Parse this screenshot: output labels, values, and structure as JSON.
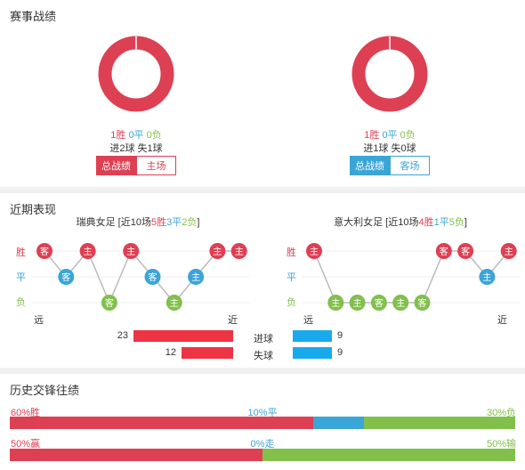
{
  "section1": {
    "title": "赛事战绩",
    "left": {
      "win_label": "1胜",
      "draw_label": "0平",
      "loss_label": "0负",
      "goals": "进2球 失1球",
      "tab_active": "总战绩",
      "tab_other": "主场",
      "win_fraction": 1.0
    },
    "right": {
      "win_label": "1胜",
      "draw_label": "0平",
      "loss_label": "0负",
      "goals": "进1球 失0球",
      "tab_active": "总战绩",
      "tab_other": "客场",
      "win_fraction": 1.0
    }
  },
  "section2": {
    "title": "近期表现",
    "left": {
      "team": "瑞典女足",
      "summary_prefix": "[近10场",
      "wins": "5胜",
      "draws": "3平",
      "losses": "2负",
      "summary_suffix": "]",
      "y_win": "胜",
      "y_draw": "平",
      "y_loss": "负",
      "x_far": "远",
      "x_near": "近",
      "results": [
        {
          "result": "W",
          "venue": "客"
        },
        {
          "result": "D",
          "venue": "客"
        },
        {
          "result": "W",
          "venue": "主"
        },
        {
          "result": "L",
          "venue": "客"
        },
        {
          "result": "W",
          "venue": "主"
        },
        {
          "result": "D",
          "venue": "客"
        },
        {
          "result": "L",
          "venue": "主"
        },
        {
          "result": "D",
          "venue": "主"
        },
        {
          "result": "W",
          "venue": "主"
        },
        {
          "result": "W",
          "venue": "主"
        }
      ]
    },
    "right": {
      "team": "意大利女足",
      "summary_prefix": "[近10场",
      "wins": "4胜",
      "draws": "1平",
      "losses": "5负",
      "summary_suffix": "]",
      "y_win": "胜",
      "y_draw": "平",
      "y_loss": "负",
      "x_far": "远",
      "x_near": "近",
      "results": [
        {
          "result": "W",
          "venue": "主"
        },
        {
          "result": "L",
          "venue": "主"
        },
        {
          "result": "L",
          "venue": "主"
        },
        {
          "result": "L",
          "venue": "客"
        },
        {
          "result": "L",
          "venue": "主"
        },
        {
          "result": "L",
          "venue": "客"
        },
        {
          "result": "W",
          "venue": "客"
        },
        {
          "result": "W",
          "venue": "客"
        },
        {
          "result": "D",
          "venue": "主"
        },
        {
          "result": "W",
          "venue": "主"
        }
      ]
    },
    "goals_for": {
      "label": "进球",
      "left": 23,
      "right": 9
    },
    "goals_against": {
      "label": "失球",
      "left": 12,
      "right": 9
    },
    "bar_max": 23
  },
  "section3": {
    "title": "历史交锋往绩",
    "row1": {
      "left_label": "60%胜",
      "mid_label": "10%平",
      "right_label": "30%负",
      "win": 60,
      "draw": 10,
      "loss": 30
    },
    "row2": {
      "left_label": "50%赢",
      "mid_label": "0%走",
      "right_label": "50%输",
      "win": 50,
      "draw": 0,
      "loss": 50
    }
  },
  "colors": {
    "win": "#de4053",
    "draw": "#3aa5d7",
    "loss": "#82c04c",
    "bar_red": "#ee3344",
    "bar_blue": "#19aaee"
  }
}
